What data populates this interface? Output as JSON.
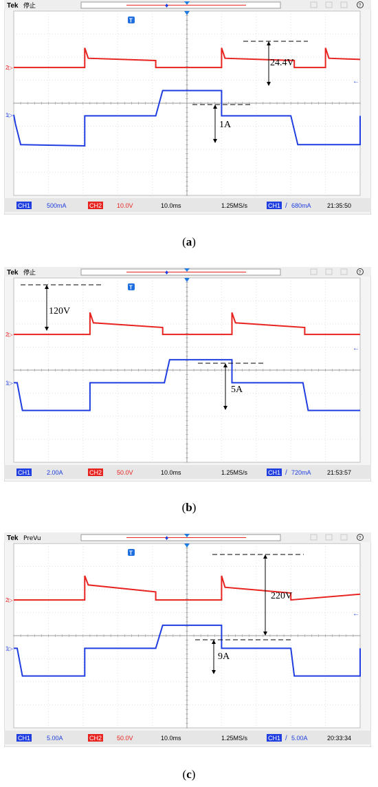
{
  "panels": [
    {
      "id": "a",
      "caption_letter": "a",
      "header": {
        "brand": "Tek",
        "status": "停止"
      },
      "annotations": [
        {
          "label": "24.4V",
          "channel": "CH2"
        },
        {
          "label": "1A",
          "channel": "CH1"
        }
      ],
      "status_bar": {
        "ch1_label": "CH1",
        "ch1_scale": "500mA",
        "ch2_label": "CH2",
        "ch2_scale": "10.0V",
        "timebase": "10.0ms",
        "sample_rate": "1.25MS/s",
        "trigger_channel": "CH1",
        "trigger_slope": "/",
        "trigger_level": "680mA",
        "time": "21:35:50"
      }
    },
    {
      "id": "b",
      "caption_letter": "b",
      "header": {
        "brand": "Tek",
        "status": "停止"
      },
      "annotations": [
        {
          "label": "120V",
          "channel": "CH2"
        },
        {
          "label": "5A",
          "channel": "CH1"
        }
      ],
      "status_bar": {
        "ch1_label": "CH1",
        "ch1_scale": "2.00A",
        "ch2_label": "CH2",
        "ch2_scale": "50.0V",
        "timebase": "10.0ms",
        "sample_rate": "1.25MS/s",
        "trigger_channel": "CH1",
        "trigger_slope": "/",
        "trigger_level": "720mA",
        "time": "21:53:57"
      }
    },
    {
      "id": "c",
      "caption_letter": "c",
      "header": {
        "brand": "Tek",
        "status": "PreVu"
      },
      "annotations": [
        {
          "label": "220V",
          "channel": "CH2"
        },
        {
          "label": "9A",
          "channel": "CH1"
        }
      ],
      "status_bar": {
        "ch1_label": "CH1",
        "ch1_scale": "5.00A",
        "ch2_label": "CH2",
        "ch2_scale": "50.0V",
        "timebase": "10.0ms",
        "sample_rate": "1.25MS/s",
        "trigger_channel": "CH1",
        "trigger_slope": "/",
        "trigger_level": "5.00A",
        "time": "20:33:34"
      }
    }
  ],
  "chart_data": [
    {
      "type": "line",
      "x_unit": "div",
      "xlim": [
        0,
        10
      ],
      "ylim": [
        -4,
        4
      ],
      "grid": true,
      "series": [
        {
          "name": "CH2",
          "color": "#e8221e",
          "x": [
            0,
            2.05,
            2.05,
            2.15,
            4.1,
            4.1,
            6.0,
            6.0,
            6.1,
            8.1,
            8.1,
            9.0,
            9.0,
            9.1,
            10
          ],
          "y": [
            1.55,
            1.55,
            2.4,
            1.95,
            1.85,
            1.55,
            1.55,
            2.4,
            1.95,
            1.85,
            1.55,
            1.55,
            2.4,
            1.95,
            1.9
          ]
        },
        {
          "name": "CH1",
          "color": "#1f3de0",
          "x": [
            0,
            0.05,
            0.2,
            2.05,
            2.05,
            4.1,
            4.3,
            6.0,
            6.0,
            8.0,
            8.2,
            10.0,
            10.0
          ],
          "y": [
            -0.5,
            -0.9,
            -1.8,
            -1.85,
            -0.55,
            -0.55,
            0.55,
            0.55,
            -0.55,
            -0.55,
            -1.8,
            -1.8,
            -0.55
          ]
        }
      ]
    },
    {
      "type": "line",
      "x_unit": "div",
      "xlim": [
        0,
        10
      ],
      "ylim": [
        -4,
        4
      ],
      "grid": true,
      "series": [
        {
          "name": "CH2",
          "color": "#e8221e",
          "x": [
            0,
            2.2,
            2.2,
            2.3,
            4.3,
            4.3,
            6.3,
            6.3,
            6.4,
            8.4,
            8.4,
            10
          ],
          "y": [
            1.55,
            1.55,
            2.5,
            2.05,
            1.85,
            1.55,
            1.55,
            2.5,
            2.05,
            1.85,
            1.55,
            1.55
          ]
        },
        {
          "name": "CH1",
          "color": "#1f3de0",
          "x": [
            0,
            0.1,
            0.25,
            2.2,
            2.2,
            4.35,
            4.5,
            6.3,
            6.3,
            8.35,
            8.5,
            10
          ],
          "y": [
            -0.55,
            -0.55,
            -1.75,
            -1.75,
            -0.55,
            -0.55,
            0.45,
            0.45,
            -0.55,
            -0.55,
            -1.75,
            -1.75
          ]
        }
      ]
    },
    {
      "type": "line",
      "x_unit": "div",
      "xlim": [
        0,
        10
      ],
      "ylim": [
        -4,
        4
      ],
      "grid": true,
      "series": [
        {
          "name": "CH2",
          "color": "#e8221e",
          "x": [
            0,
            2.05,
            2.05,
            2.15,
            4.1,
            4.1,
            6.0,
            6.0,
            6.1,
            8.0,
            8.0,
            10
          ],
          "y": [
            1.55,
            1.55,
            2.6,
            2.2,
            1.9,
            1.55,
            1.55,
            2.6,
            2.1,
            1.85,
            1.55,
            1.8
          ]
        },
        {
          "name": "CH1",
          "color": "#1f3de0",
          "x": [
            0,
            0.1,
            0.25,
            2.05,
            2.05,
            4.1,
            4.3,
            6.0,
            6.0,
            8.0,
            8.1,
            10.0,
            10.0
          ],
          "y": [
            -0.55,
            -0.55,
            -1.75,
            -1.75,
            -0.55,
            -0.55,
            0.45,
            0.45,
            -0.55,
            -0.55,
            -1.75,
            -1.75,
            -0.55
          ]
        }
      ]
    }
  ]
}
